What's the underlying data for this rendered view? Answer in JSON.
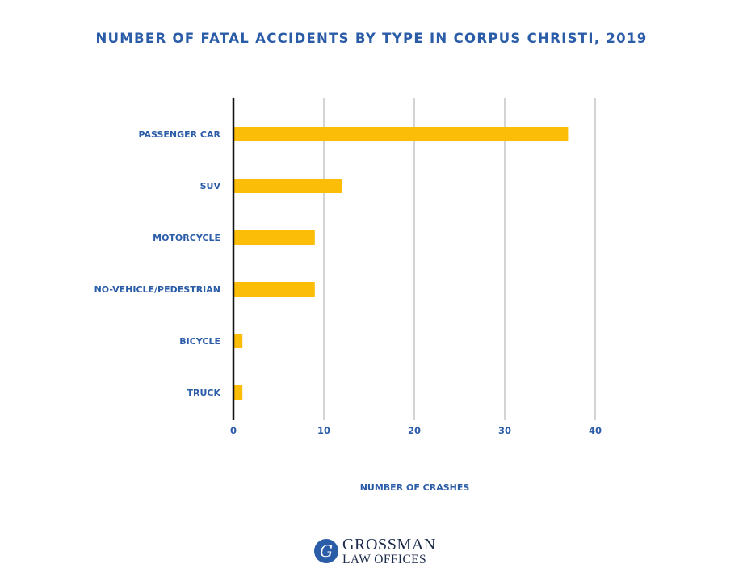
{
  "chart_data": {
    "type": "bar",
    "orientation": "horizontal",
    "title": "NUMBER OF FATAL ACCIDENTS BY TYPE IN CORPUS CHRISTI, 2019",
    "xlabel": "NUMBER OF CRASHES",
    "ylabel": "",
    "categories": [
      "PASSENGER CAR",
      "SUV",
      "MOTORCYCLE",
      "NO-VEHICLE/PEDESTRIAN",
      "BICYCLE",
      "TRUCK"
    ],
    "values": [
      37,
      12,
      9,
      9,
      1,
      1
    ],
    "xlim": [
      0,
      40
    ],
    "xticks": [
      0,
      10,
      20,
      30,
      40
    ],
    "grid": "vertical",
    "bar_color": "#fbbd08"
  },
  "colors": {
    "label": "#2b5ca8",
    "grid": "#b8b8b8",
    "axis": "#111111"
  },
  "logo": {
    "mark": "G",
    "line1": "GROSSMAN",
    "line2": "LAW OFFICES"
  }
}
